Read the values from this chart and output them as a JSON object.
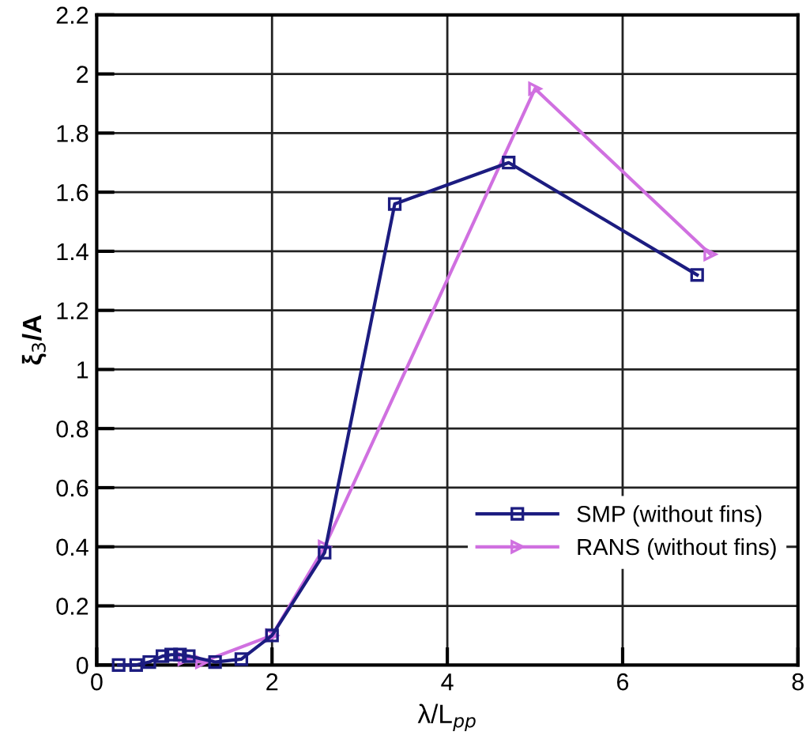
{
  "chart_data": {
    "type": "line",
    "xlabel": "λ/L$_{pp}$",
    "ylabel": "ξ$_{3}$/A",
    "series": [
      {
        "name": "SMP (without fins)",
        "color": "#1c1c80",
        "marker": "square",
        "x": [
          0.25,
          0.45,
          0.6,
          0.75,
          0.85,
          0.95,
          1.05,
          1.35,
          1.65,
          2.0,
          2.6,
          3.4,
          4.7,
          6.85
        ],
        "values": [
          0.0,
          0.0,
          0.01,
          0.03,
          0.035,
          0.035,
          0.03,
          0.01,
          0.02,
          0.1,
          0.38,
          1.56,
          1.7,
          1.32
        ]
      },
      {
        "name": "RANS (without fins)",
        "color": "#d070e0",
        "marker": "triangle",
        "x": [
          1.0,
          1.2,
          2.0,
          2.6,
          5.0,
          7.0
        ],
        "values": [
          0.02,
          0.01,
          0.1,
          0.4,
          1.95,
          1.39
        ]
      }
    ],
    "xlim": [
      0,
      8
    ],
    "xticks": [
      0,
      2,
      4,
      6,
      8
    ],
    "ylim": [
      0,
      2.2
    ],
    "yticks": [
      0,
      0.2,
      0.4,
      0.6,
      0.8,
      1,
      1.2,
      1.4,
      1.6,
      1.8,
      2,
      2.2
    ],
    "grid": true,
    "legend": "bottom right",
    "line_style": "solid"
  }
}
